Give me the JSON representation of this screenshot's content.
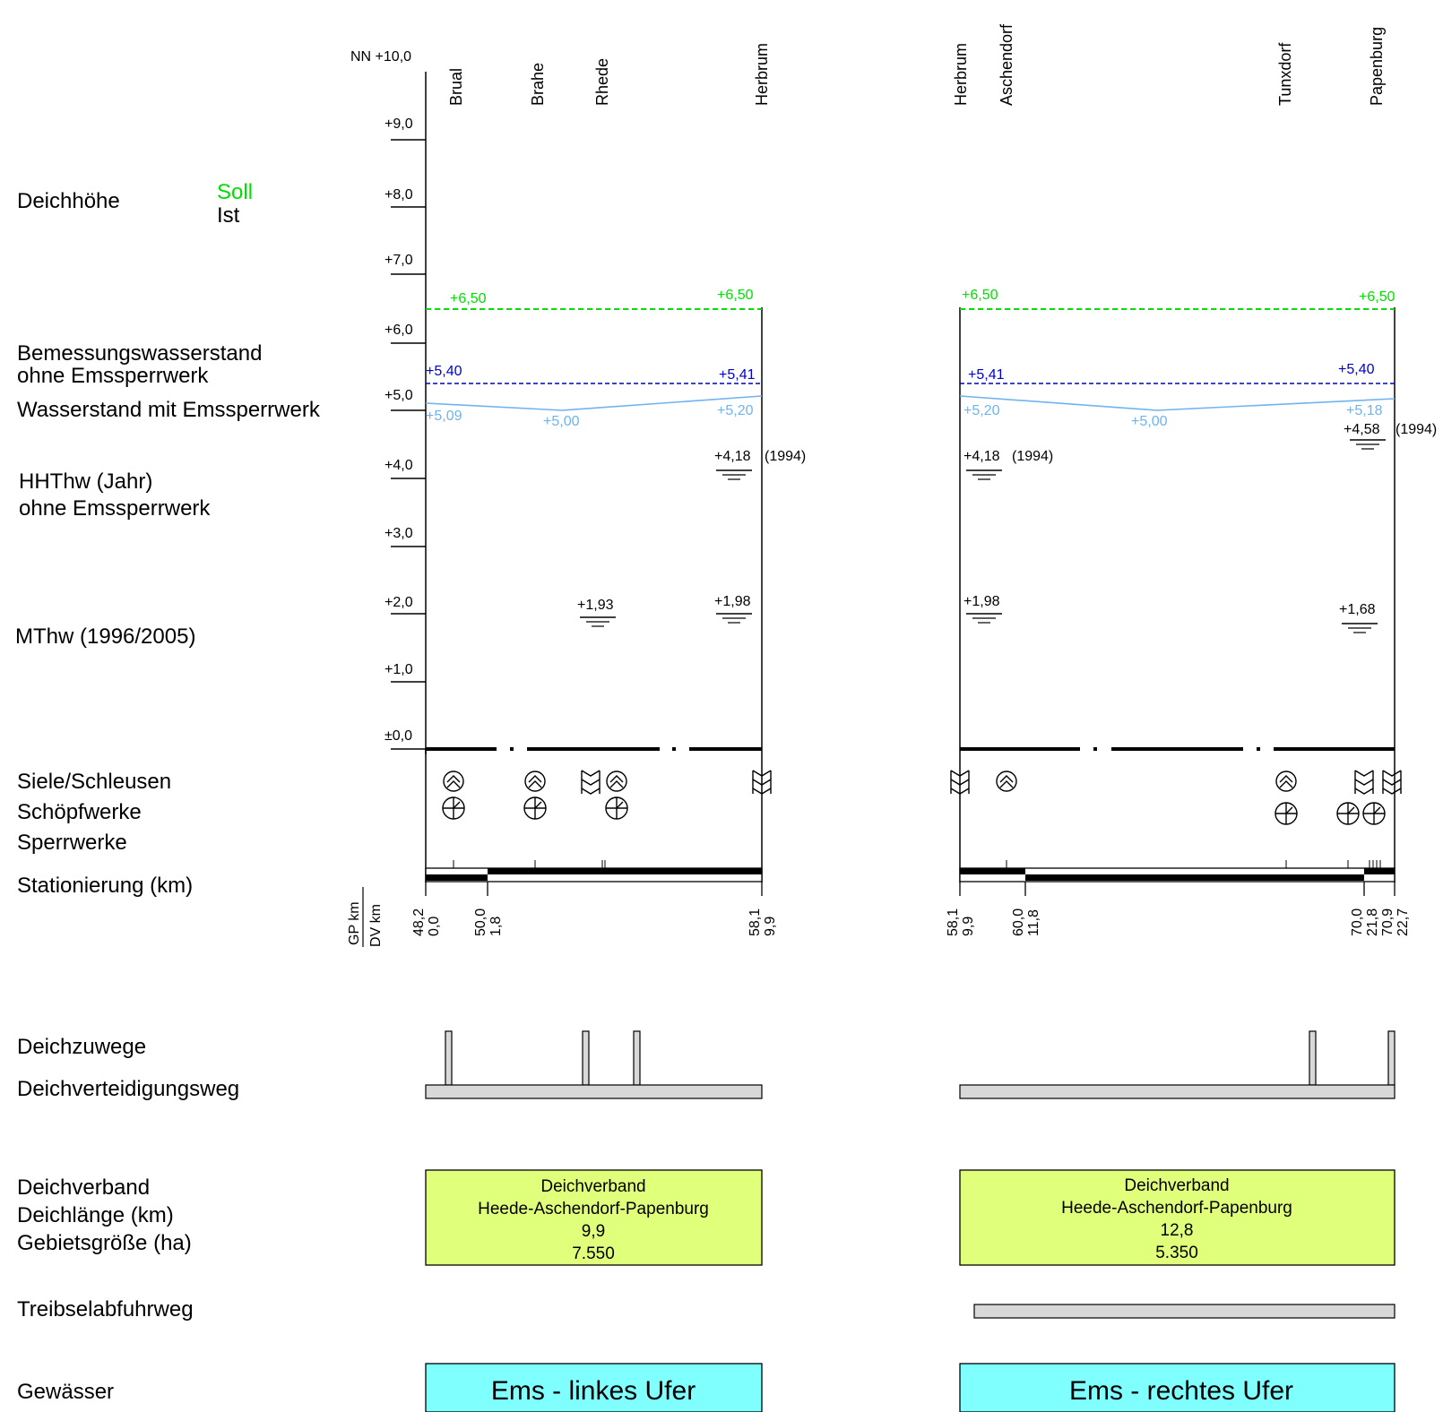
{
  "labels": {
    "deichhoehe": "Deichhöhe",
    "soll": "Soll",
    "ist": "Ist",
    "bemessung_1": "Bemessungswasserstand",
    "bemessung_2": "ohne Emssperrwerk",
    "wasserstand": "Wasserstand mit Emssperrwerk",
    "hhthw_1": "HHThw (Jahr)",
    "hhthw_2": "ohne Emssperrwerk",
    "mthw": "MThw (1996/2005)",
    "siele": "Siele/Schleusen",
    "schoepf": "Schöpfwerke",
    "sperr": "Sperrwerke",
    "station": "Stationierung (km)",
    "gp_km": "GP km",
    "dv_km": "DV km",
    "zuwege": "Deichzuwege",
    "verteidigung": "Deichverteidigungsweg",
    "verband": "Deichverband",
    "laenge": "Deichlänge (km)",
    "gebiet": "Gebietsgröße (ha)",
    "treibsel": "Treibselabfuhrweg",
    "gewaesser": "Gewässer"
  },
  "axis": {
    "top_label": "NN +10,0",
    "ticks": [
      "+9,0",
      "+8,0",
      "+7,0",
      "+6,0",
      "+5,0",
      "+4,0",
      "+3,0",
      "+2,0",
      "+1,0",
      "±0,0"
    ]
  },
  "colors": {
    "soll": "#00e000",
    "bemessung": "#0000cc",
    "wasserstand": "#6fb3f0",
    "verband_fill": "#e0ff7a",
    "gewaesser_fill": "#80ffff",
    "path_fill": "#d8d8d8"
  },
  "left": {
    "places": [
      "Brual",
      "Brahe",
      "Rhede",
      "Herbrum"
    ],
    "soll_values": [
      "+6,50",
      "+6,50"
    ],
    "bemessung_values": [
      "+5,40",
      "+5,41"
    ],
    "wasserstand_values": [
      "+5,09",
      "+5,00",
      "+5,20"
    ],
    "hhthw": {
      "value": "+4,18",
      "year": "(1994)"
    },
    "mthw_values": [
      "+1,93",
      "+1,98"
    ],
    "km": [
      {
        "gp": "48,2",
        "dv": "0,0"
      },
      {
        "gp": "50,0",
        "dv": "1,8"
      },
      {
        "gp": "58,1",
        "dv": "9,9"
      }
    ],
    "verband": {
      "title": "Deichverband",
      "name": "Heede-Aschendorf-Papenburg",
      "length": "9,9",
      "area": "7.550"
    },
    "gewaesser": "Ems - linkes Ufer"
  },
  "right": {
    "places": [
      "Herbrum",
      "Aschendorf",
      "Tunxdorf",
      "Papenburg"
    ],
    "soll_values": [
      "+6,50",
      "+6,50"
    ],
    "bemessung_values": [
      "+5,41",
      "+5,40"
    ],
    "wasserstand_values": [
      "+5,20",
      "+5,00",
      "+5,18"
    ],
    "hhthw": [
      {
        "value": "+4,18",
        "year": "(1994)"
      },
      {
        "value": "+4,58",
        "year": "(1994)"
      }
    ],
    "mthw_values": [
      "+1,98",
      "+1,68"
    ],
    "km": [
      {
        "gp": "58,1",
        "dv": "9,9"
      },
      {
        "gp": "60,0",
        "dv": "11,8"
      },
      {
        "gp": "70,0",
        "dv": "21,8"
      },
      {
        "gp": "70,9",
        "dv": "22,7"
      }
    ],
    "verband": {
      "title": "Deichverband",
      "name": "Heede-Aschendorf-Papenburg",
      "length": "12,8",
      "area": "5.350"
    },
    "gewaesser": "Ems - rechtes Ufer"
  }
}
